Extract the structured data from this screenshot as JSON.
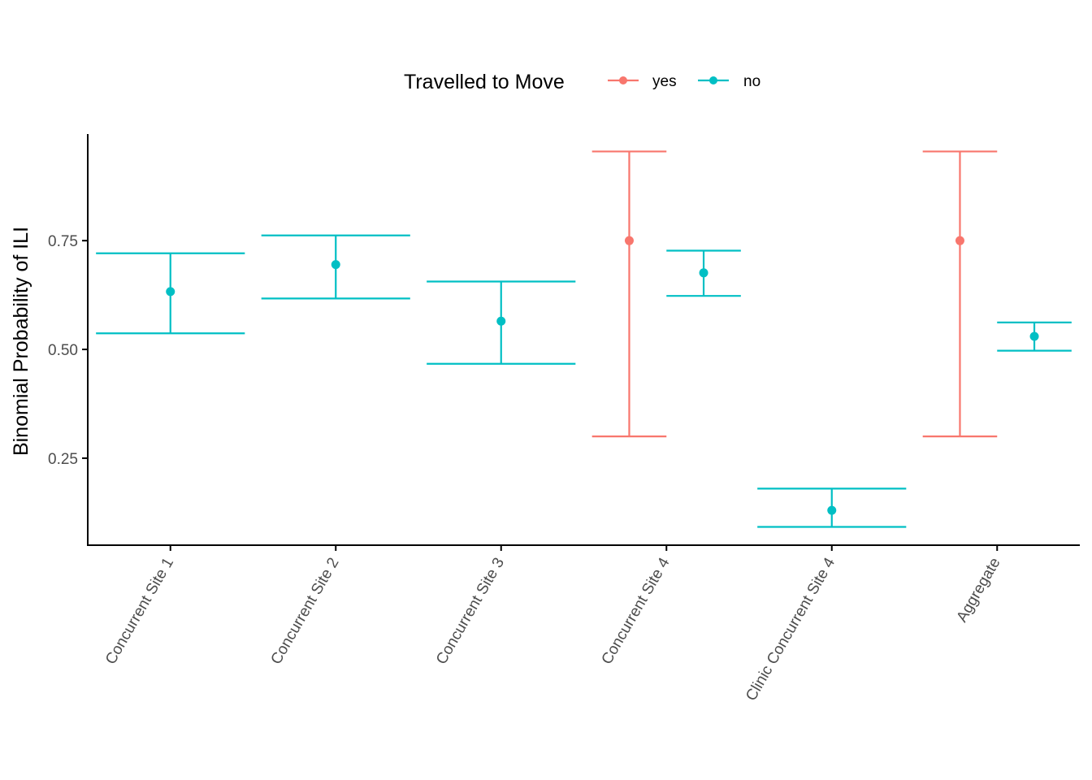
{
  "chart_data": {
    "type": "errorbar",
    "xlabel": "",
    "ylabel": "Binomial Probability of ILI",
    "ylim": [
      0.05,
      0.995
    ],
    "yticks": [
      0.25,
      0.5,
      0.75
    ],
    "ytick_labels": [
      "0.25",
      "0.50",
      "0.75"
    ],
    "grid": false,
    "legend": {
      "title": "Travelled to Move",
      "position": "top",
      "entries": [
        {
          "name": "yes",
          "color": "#F8766D"
        },
        {
          "name": "no",
          "color": "#00BFC4"
        }
      ]
    },
    "categories": [
      "Concurrent Site 1",
      "Concurrent Site 2",
      "Concurrent Site 3",
      "Concurrent Site 4",
      "Clinic Concurrent Site 4",
      "Aggregate"
    ],
    "series": [
      {
        "name": "yes",
        "color": "#F8766D",
        "points": [
          {
            "category": "Concurrent Site 4",
            "estimate": 0.75,
            "lower": 0.3,
            "upper": 0.955
          },
          {
            "category": "Aggregate",
            "estimate": 0.75,
            "lower": 0.3,
            "upper": 0.955
          }
        ]
      },
      {
        "name": "no",
        "color": "#00BFC4",
        "points": [
          {
            "category": "Concurrent Site 1",
            "estimate": 0.633,
            "lower": 0.537,
            "upper": 0.721
          },
          {
            "category": "Concurrent Site 2",
            "estimate": 0.695,
            "lower": 0.617,
            "upper": 0.762
          },
          {
            "category": "Concurrent Site 3",
            "estimate": 0.565,
            "lower": 0.467,
            "upper": 0.656
          },
          {
            "category": "Concurrent Site 4",
            "estimate": 0.676,
            "lower": 0.623,
            "upper": 0.727
          },
          {
            "category": "Clinic Concurrent Site 4",
            "estimate": 0.13,
            "lower": 0.092,
            "upper": 0.18
          },
          {
            "category": "Aggregate",
            "estimate": 0.53,
            "lower": 0.497,
            "upper": 0.562
          }
        ]
      }
    ]
  }
}
